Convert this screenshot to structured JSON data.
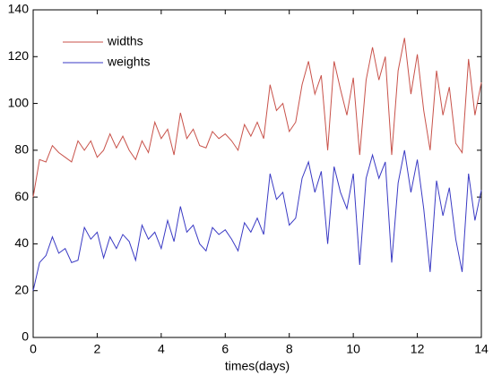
{
  "chart_data": {
    "type": "line",
    "xlabel": "times(days)",
    "x": [
      0,
      0.2,
      0.4,
      0.6,
      0.8,
      1.0,
      1.2,
      1.4,
      1.6,
      1.8,
      2.0,
      2.2,
      2.4,
      2.6,
      2.8,
      3.0,
      3.2,
      3.4,
      3.6,
      3.8,
      4.0,
      4.2,
      4.4,
      4.6,
      4.8,
      5.0,
      5.2,
      5.4,
      5.6,
      5.8,
      6.0,
      6.2,
      6.4,
      6.6,
      6.8,
      7.0,
      7.2,
      7.4,
      7.6,
      7.8,
      8.0,
      8.2,
      8.4,
      8.6,
      8.8,
      9.0,
      9.2,
      9.4,
      9.6,
      9.8,
      10.0,
      10.2,
      10.4,
      10.6,
      10.8,
      11.0,
      11.2,
      11.4,
      11.6,
      11.8,
      12.0,
      12.2,
      12.4,
      12.6,
      12.8,
      13.0,
      13.2,
      13.4,
      13.6,
      13.8,
      14.0
    ],
    "series": [
      {
        "name": "widths",
        "color": "#c8524a",
        "values": [
          60,
          76,
          75,
          82,
          79,
          77,
          75,
          84,
          80,
          84,
          77,
          80,
          87,
          81,
          86,
          80,
          76,
          84,
          79,
          92,
          85,
          89,
          78,
          96,
          85,
          89,
          82,
          81,
          88,
          85,
          87,
          84,
          80,
          91,
          86,
          92,
          85,
          108,
          97,
          100,
          88,
          92,
          108,
          118,
          104,
          112,
          80,
          118,
          106,
          95,
          111,
          78,
          110,
          124,
          110,
          120,
          78,
          114,
          128,
          104,
          121,
          97,
          80,
          114,
          95,
          107,
          83,
          79,
          119,
          95,
          109
        ]
      },
      {
        "name": "weights",
        "color": "#3a3ac4",
        "values": [
          20,
          32,
          35,
          43,
          36,
          38,
          32,
          33,
          47,
          42,
          45,
          34,
          43,
          38,
          44,
          41,
          33,
          48,
          42,
          45,
          38,
          50,
          41,
          56,
          45,
          48,
          40,
          37,
          47,
          44,
          46,
          42,
          37,
          49,
          45,
          51,
          44,
          70,
          59,
          62,
          48,
          51,
          68,
          75,
          62,
          71,
          40,
          73,
          62,
          55,
          70,
          31,
          68,
          78,
          68,
          75,
          32,
          66,
          80,
          62,
          76,
          55,
          28,
          67,
          52,
          64,
          42,
          28,
          70,
          50,
          63
        ]
      }
    ],
    "xlim": [
      0,
      14
    ],
    "xticks": [
      0,
      2,
      4,
      6,
      8,
      10,
      12,
      14
    ],
    "ylim": [
      0,
      140
    ],
    "yticks": [
      0,
      20,
      40,
      60,
      80,
      100,
      120,
      140
    ],
    "legend": "upper left"
  }
}
